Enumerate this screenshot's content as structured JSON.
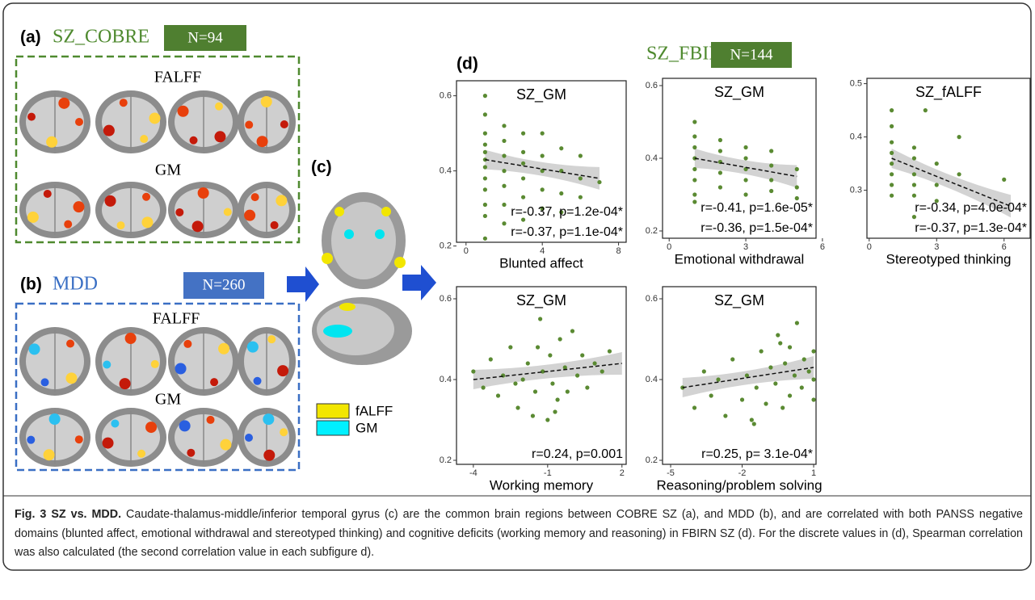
{
  "panel_a": {
    "label": "(a)",
    "title": "SZ_COBRE",
    "n": "N=94",
    "row1": "FALFF",
    "row2": "GM"
  },
  "panel_b": {
    "label": "(b)",
    "title": "MDD",
    "n": "N=260",
    "row1": "FALFF",
    "row2": "GM"
  },
  "panel_c": {
    "label": "(c)",
    "legend": [
      "fALFF",
      "GM"
    ]
  },
  "panel_d": {
    "label": "(d)",
    "title": "SZ_FBIRN",
    "n": "N=144"
  },
  "chart_data": [
    {
      "type": "scatter",
      "title": "SZ_GM",
      "x_label": "Blunted affect",
      "color": "#5a8a32",
      "x": [
        1,
        1,
        1,
        1,
        1,
        1,
        1,
        1,
        1,
        1,
        1,
        1,
        2,
        2,
        2,
        2,
        2,
        2,
        2,
        3,
        3,
        3,
        3,
        3,
        3,
        4,
        4,
        4,
        4,
        4,
        5,
        5,
        5,
        5,
        6,
        6,
        6,
        7
      ],
      "y": [
        0.6,
        0.55,
        0.5,
        0.47,
        0.45,
        0.43,
        0.41,
        0.38,
        0.35,
        0.31,
        0.28,
        0.22,
        0.52,
        0.48,
        0.44,
        0.4,
        0.36,
        0.31,
        0.26,
        0.5,
        0.45,
        0.42,
        0.38,
        0.33,
        0.27,
        0.5,
        0.44,
        0.4,
        0.35,
        0.3,
        0.46,
        0.4,
        0.34,
        0.29,
        0.44,
        0.38,
        0.33,
        0.37
      ],
      "fit": {
        "x": [
          1,
          7
        ],
        "y": [
          0.43,
          0.38
        ]
      },
      "annotations": [
        "r=-0.37, p=1.2e-04*",
        "r=-0.37, p=1.1e-04*"
      ],
      "xlim": [
        -0.5,
        8.4
      ],
      "ylim": [
        0.21,
        0.64
      ],
      "xticks": [
        0,
        4,
        8
      ],
      "yticks": [
        0.2,
        0.4,
        0.6
      ]
    },
    {
      "type": "scatter",
      "title": "SZ_GM",
      "x_label": "Emotional withdrawal",
      "color": "#5a8a32",
      "x": [
        1,
        1,
        1,
        1,
        1,
        1,
        1,
        1,
        2,
        2,
        2,
        2,
        2,
        3,
        3,
        3,
        3,
        3,
        4,
        4,
        4,
        4,
        5,
        5,
        5
      ],
      "y": [
        0.5,
        0.46,
        0.43,
        0.4,
        0.37,
        0.34,
        0.3,
        0.28,
        0.45,
        0.42,
        0.39,
        0.36,
        0.32,
        0.43,
        0.4,
        0.37,
        0.34,
        0.3,
        0.42,
        0.38,
        0.34,
        0.31,
        0.37,
        0.32,
        0.29
      ],
      "fit": {
        "x": [
          1,
          5
        ],
        "y": [
          0.4,
          0.35
        ]
      },
      "annotations": [
        "r=-0.41, p=1.6e-05*",
        "r=-0.36, p=1.5e-04*"
      ],
      "xlim": [
        -0.26,
        5.75
      ],
      "ylim": [
        0.18,
        0.62
      ],
      "xticks": [
        0,
        3,
        6
      ],
      "yticks": [
        0.2,
        0.4,
        0.6
      ]
    },
    {
      "type": "scatter",
      "title": "SZ_fALFF",
      "x_label": "Stereotyped thinking",
      "color": "#5a8a32",
      "x": [
        1,
        1,
        1,
        1,
        1,
        1,
        1,
        1,
        2,
        2,
        2,
        2,
        2,
        2,
        2.5,
        3,
        3,
        3,
        4,
        4,
        6
      ],
      "y": [
        0.45,
        0.42,
        0.39,
        0.37,
        0.35,
        0.33,
        0.31,
        0.29,
        0.38,
        0.36,
        0.33,
        0.31,
        0.29,
        0.25,
        0.45,
        0.35,
        0.31,
        0.28,
        0.4,
        0.33,
        0.32
      ],
      "fit": {
        "x": [
          1,
          6.3
        ],
        "y": [
          0.36,
          0.27
        ]
      },
      "annotations": [
        "r=-0.34, p=4.0e-04*",
        "r=-0.37, p=1.3e-04*"
      ],
      "xlim": [
        -0.1,
        7.16
      ],
      "ylim": [
        0.21,
        0.51
      ],
      "xticks": [
        0,
        3,
        6
      ],
      "yticks": [
        0.3,
        0.4,
        0.5
      ]
    },
    {
      "type": "scatter",
      "title": "SZ_GM",
      "x_label": "Working memory",
      "color": "#5a8a32",
      "x": [
        -4,
        -3.6,
        -3.3,
        -3,
        -2.8,
        -2.5,
        -2.2,
        -2,
        -1.8,
        -1.6,
        -1.5,
        -1.3,
        -1.2,
        -1,
        -0.9,
        -0.8,
        -0.6,
        -0.5,
        -0.3,
        -0.2,
        0,
        0.2,
        0.4,
        0.6,
        0.9,
        1.2,
        1.5,
        -1.4,
        -0.7,
        -2.3
      ],
      "y": [
        0.42,
        0.38,
        0.45,
        0.36,
        0.41,
        0.48,
        0.33,
        0.4,
        0.44,
        0.31,
        0.37,
        0.55,
        0.42,
        0.3,
        0.46,
        0.39,
        0.35,
        0.5,
        0.43,
        0.37,
        0.52,
        0.41,
        0.46,
        0.38,
        0.44,
        0.42,
        0.47,
        0.48,
        0.32,
        0.39
      ],
      "fit": {
        "x": [
          -4,
          2
        ],
        "y": [
          0.4,
          0.44
        ]
      },
      "annotations": [
        "r=0.24, p=0.001"
      ],
      "xlim": [
        -4.68,
        2.17
      ],
      "ylim": [
        0.19,
        0.63
      ],
      "xticks": [
        -4,
        -1,
        2
      ],
      "yticks": [
        0.2,
        0.4,
        0.6
      ]
    },
    {
      "type": "scatter",
      "title": "SZ_GM",
      "x_label": "Reasoning/problem solving",
      "color": "#5a8a32",
      "x": [
        -4.5,
        -4,
        -3.6,
        -3.3,
        -3,
        -2.7,
        -2.4,
        -2,
        -1.8,
        -1.6,
        -1.4,
        -1.2,
        -1,
        -0.8,
        -0.6,
        -0.5,
        -0.3,
        -0.2,
        0,
        0,
        0.2,
        0.3,
        0.5,
        0.6,
        0.8,
        1,
        1,
        1,
        -1.5,
        -0.4
      ],
      "y": [
        0.38,
        0.33,
        0.42,
        0.36,
        0.4,
        0.31,
        0.45,
        0.35,
        0.41,
        0.3,
        0.38,
        0.47,
        0.34,
        0.43,
        0.39,
        0.51,
        0.33,
        0.44,
        0.36,
        0.48,
        0.41,
        0.54,
        0.38,
        0.45,
        0.42,
        0.47,
        0.4,
        0.35,
        0.29,
        0.49
      ],
      "fit": {
        "x": [
          -4.5,
          1
        ],
        "y": [
          0.38,
          0.43
        ]
      },
      "annotations": [
        "r=0.25, p= 3.1e-04*"
      ],
      "xlim": [
        -5.34,
        1.1
      ],
      "ylim": [
        0.19,
        0.63
      ],
      "xticks": [
        -5,
        -2,
        1
      ],
      "yticks": [
        0.2,
        0.4,
        0.6
      ]
    }
  ],
  "caption": {
    "heading": "Fig. 3 SZ vs. MDD.",
    "text": "Caudate-thalamus-middle/inferior temporal gyrus (c) are the common brain regions between COBRE SZ (a), and MDD (b), and are correlated with both PANSS negative domains (blunted affect, emotional withdrawal and stereotyped thinking) and cognitive deficits (working memory and reasoning) in FBIRN SZ (d). For the discrete values in (d), Spearman correlation was also calculated (the second correlation value in each subfigure d)."
  }
}
